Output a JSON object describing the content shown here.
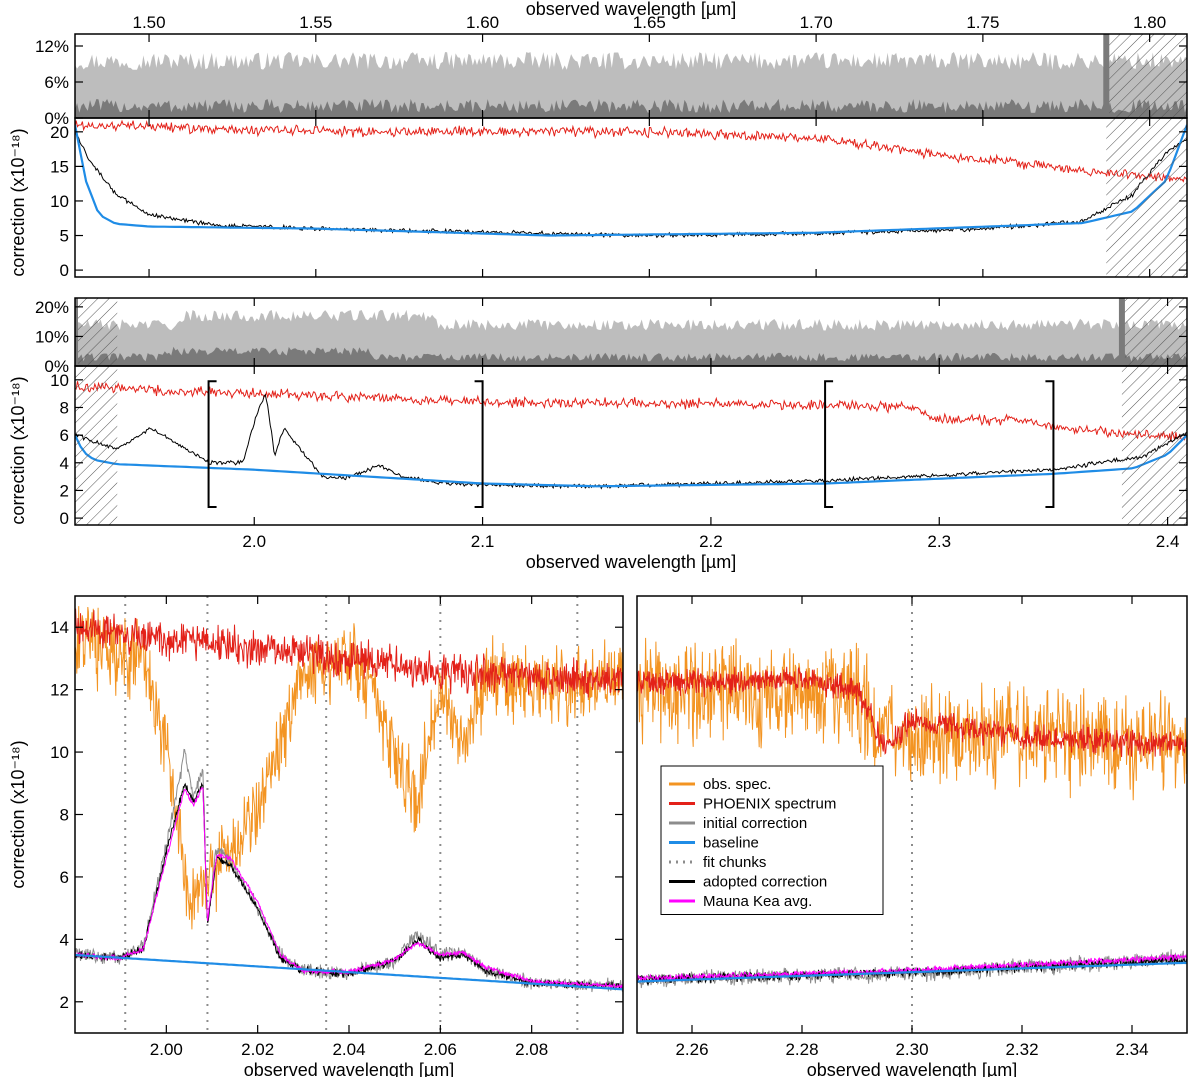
{
  "colors": {
    "obs": "#f39422",
    "phoenix": "#e32119",
    "initial": "#8c8c8c",
    "baseline": "#1f8ce6",
    "chunks": "#8c8c8c",
    "adopted": "#000000",
    "maunakea": "#ff00ff",
    "noise_light": "#bdbdbd",
    "noise_dark": "#7a7a7a",
    "frame": "#000000"
  },
  "chart_data": [
    {
      "id": "H-noise",
      "type": "area",
      "title": "",
      "xlabel": "observed wavelength [µm]",
      "x_ticks": [
        1.5,
        1.55,
        1.6,
        1.65,
        1.7,
        1.75,
        1.8
      ],
      "x_tick_labels": [
        "1.50",
        "1.55",
        "1.60",
        "1.65",
        "1.70",
        "1.75",
        "1.80"
      ],
      "xlim": [
        1.4778,
        1.8112
      ],
      "ylim": [
        0,
        0.14
      ],
      "y_ticks": [
        0,
        0.06,
        0.12
      ],
      "y_tick_labels": [
        "0%",
        "6%",
        "12%"
      ],
      "series": [
        {
          "name": "noise (total)",
          "level": 0.095,
          "jitter": 0.015
        },
        {
          "name": "noise (residual)",
          "level": 0.02,
          "jitter": 0.012
        }
      ],
      "masked_ranges": [
        [
          1.787,
          1.8112
        ]
      ]
    },
    {
      "id": "H-correction",
      "type": "line",
      "ylabel": "correction (x10⁻¹⁸)",
      "xlim": [
        1.4778,
        1.8112
      ],
      "ylim": [
        -1,
        22
      ],
      "y_ticks": [
        0,
        5,
        10,
        15,
        20
      ],
      "y_tick_labels": [
        "0",
        "5",
        "10",
        "15",
        "20"
      ],
      "series": [
        {
          "name": "PHOENIX spectrum",
          "color_key": "phoenix",
          "knots_x": [
            1.4778,
            1.55,
            1.65,
            1.7,
            1.74,
            1.78,
            1.8112
          ],
          "knots_y": [
            21.0,
            20.0,
            20.0,
            19.0,
            16.5,
            14.5,
            13.0
          ],
          "noise": 0.6
        },
        {
          "name": "adopted correction",
          "color_key": "adopted",
          "knots_x": [
            1.4778,
            1.482,
            1.49,
            1.5,
            1.52,
            1.55,
            1.6,
            1.65,
            1.7,
            1.75,
            1.78,
            1.795,
            1.805,
            1.8112
          ],
          "knots_y": [
            20.0,
            16.0,
            11.0,
            8.0,
            6.5,
            6.0,
            5.5,
            5.0,
            5.3,
            6.0,
            7.0,
            11.0,
            17.0,
            19.0
          ],
          "noise": 0.25
        },
        {
          "name": "baseline",
          "color_key": "baseline",
          "knots_x": [
            1.4778,
            1.481,
            1.485,
            1.49,
            1.5,
            1.55,
            1.62,
            1.7,
            1.78,
            1.795,
            1.805,
            1.8112
          ],
          "knots_y": [
            21.0,
            13.0,
            8.0,
            6.7,
            6.3,
            6.0,
            5.0,
            5.4,
            6.8,
            8.5,
            13.0,
            21.0
          ],
          "noise": 0
        }
      ],
      "masked_ranges": [
        [
          1.787,
          1.8112
        ]
      ]
    },
    {
      "id": "K-noise",
      "type": "area",
      "xlim": [
        1.9215,
        2.4085
      ],
      "ylim": [
        0,
        0.23
      ],
      "y_ticks": [
        0,
        0.1,
        0.2
      ],
      "y_tick_labels": [
        "0%",
        "10%",
        "20%"
      ],
      "series": [
        {
          "name": "noise (total)",
          "level": 0.14,
          "jitter": 0.02
        },
        {
          "name": "noise (residual)",
          "level": 0.03,
          "jitter": 0.015
        }
      ],
      "masked_ranges": [
        [
          1.9215,
          1.94
        ],
        [
          2.38,
          2.4085
        ]
      ]
    },
    {
      "id": "K-correction",
      "type": "line",
      "ylabel": "correction (x10⁻¹⁸)",
      "xlabel": "observed wavelength [µm]",
      "x_ticks": [
        2.0,
        2.1,
        2.2,
        2.3,
        2.4
      ],
      "x_tick_labels": [
        "2.0",
        "2.1",
        "2.2",
        "2.3",
        "2.4"
      ],
      "xlim": [
        1.9215,
        2.4085
      ],
      "ylim": [
        -0.5,
        11
      ],
      "y_ticks": [
        0,
        2,
        4,
        6,
        8,
        10
      ],
      "y_tick_labels": [
        "0",
        "2",
        "4",
        "6",
        "8",
        "10"
      ],
      "series": [
        {
          "name": "PHOENIX spectrum",
          "color_key": "phoenix",
          "knots_x": [
            1.9215,
            2.0,
            2.1,
            2.2,
            2.29,
            2.295,
            2.34,
            2.35,
            2.4085
          ],
          "knots_y": [
            9.5,
            9.0,
            8.4,
            8.3,
            8.0,
            7.2,
            7.0,
            6.6,
            5.8
          ],
          "noise": 0.3
        },
        {
          "name": "adopted correction",
          "color_key": "adopted",
          "knots_x": [
            1.9215,
            1.94,
            1.955,
            1.965,
            1.98,
            1.995,
            2.002,
            2.005,
            2.009,
            2.013,
            2.02,
            2.03,
            2.04,
            2.055,
            2.065,
            2.08,
            2.1,
            2.15,
            2.25,
            2.35,
            2.39,
            2.4085
          ],
          "knots_y": [
            6.0,
            5.0,
            6.5,
            5.5,
            4.0,
            4.0,
            8.0,
            9.0,
            4.5,
            6.5,
            5.0,
            3.0,
            2.9,
            3.8,
            3.0,
            2.6,
            2.4,
            2.3,
            2.7,
            3.5,
            4.5,
            6.2
          ],
          "noise": 0.12
        },
        {
          "name": "baseline",
          "color_key": "baseline",
          "knots_x": [
            1.9215,
            1.925,
            1.93,
            1.94,
            2.0,
            2.1,
            2.15,
            2.25,
            2.35,
            2.385,
            2.4,
            2.4085
          ],
          "knots_y": [
            6.0,
            4.8,
            4.2,
            3.9,
            3.5,
            2.5,
            2.3,
            2.5,
            3.2,
            3.6,
            4.6,
            6.0
          ],
          "noise": 0
        }
      ],
      "brackets": [
        [
          1.98,
          2.1
        ],
        [
          2.25,
          2.35
        ]
      ],
      "masked_ranges": [
        [
          1.9215,
          1.94
        ],
        [
          2.38,
          2.4085
        ]
      ]
    },
    {
      "id": "K-zoom-left",
      "type": "line",
      "ylabel": "correction (x10⁻¹⁸)",
      "xlabel": "observed wavelength [µm]",
      "xlim": [
        1.98,
        2.1
      ],
      "ylim": [
        1,
        15
      ],
      "x_ticks": [
        2.0,
        2.02,
        2.04,
        2.06,
        2.08
      ],
      "x_tick_labels": [
        "2.00",
        "2.02",
        "2.04",
        "2.06",
        "2.08"
      ],
      "y_ticks": [
        2,
        4,
        6,
        8,
        10,
        12,
        14
      ],
      "y_tick_labels": [
        "2",
        "4",
        "6",
        "8",
        "10",
        "12",
        "14"
      ],
      "fit_chunks": [
        1.991,
        2.009,
        2.035,
        2.06,
        2.09
      ],
      "series": [
        {
          "name": "obs. spec.",
          "color_key": "obs",
          "knots_x": [
            1.98,
            1.995,
            2.0,
            2.005,
            2.01,
            2.02,
            2.03,
            2.04,
            2.045,
            2.05,
            2.055,
            2.06,
            2.065,
            2.07,
            2.08,
            2.1
          ],
          "knots_y": [
            13.5,
            13.0,
            10.0,
            5.5,
            6.0,
            8.0,
            12.5,
            13.0,
            12.0,
            10.0,
            8.5,
            12.0,
            10.0,
            12.5,
            12.0,
            12.5
          ],
          "noise": 1.0
        },
        {
          "name": "PHOENIX spectrum",
          "color_key": "phoenix",
          "knots_x": [
            1.98,
            2.0,
            2.03,
            2.06,
            2.1
          ],
          "knots_y": [
            14.0,
            13.6,
            13.2,
            12.6,
            12.3
          ],
          "noise": 0.5
        },
        {
          "name": "initial correction",
          "color_key": "initial",
          "knots_x": [
            1.98,
            1.99,
            1.995,
            2.0,
            2.004,
            2.006,
            2.008,
            2.009,
            2.011,
            2.014,
            2.02,
            2.025,
            2.03,
            2.04,
            2.05,
            2.055,
            2.06,
            2.065,
            2.07,
            2.08,
            2.1
          ],
          "knots_y": [
            3.5,
            3.4,
            3.8,
            7.0,
            10.0,
            8.5,
            9.5,
            4.5,
            7.0,
            6.5,
            5.0,
            3.5,
            3.0,
            2.9,
            3.3,
            4.2,
            3.5,
            3.6,
            3.0,
            2.6,
            2.5
          ],
          "noise": 0.18
        },
        {
          "name": "adopted correction",
          "color_key": "adopted",
          "knots_x": [
            1.98,
            1.99,
            1.995,
            2.0,
            2.004,
            2.006,
            2.008,
            2.009,
            2.011,
            2.014,
            2.02,
            2.025,
            2.03,
            2.04,
            2.05,
            2.055,
            2.06,
            2.065,
            2.07,
            2.08,
            2.1
          ],
          "knots_y": [
            3.5,
            3.4,
            3.7,
            6.8,
            9.0,
            8.4,
            9.0,
            4.5,
            6.6,
            6.4,
            5.0,
            3.4,
            3.0,
            2.9,
            3.3,
            4.0,
            3.4,
            3.5,
            3.0,
            2.6,
            2.5
          ],
          "noise": 0.1
        },
        {
          "name": "Mauna Kea avg.",
          "color_key": "maunakea",
          "knots_x": [
            1.98,
            1.99,
            1.995,
            2.0,
            2.004,
            2.006,
            2.008,
            2.009,
            2.011,
            2.014,
            2.02,
            2.025,
            2.03,
            2.04,
            2.05,
            2.055,
            2.06,
            2.065,
            2.07,
            2.08,
            2.1
          ],
          "knots_y": [
            3.5,
            3.4,
            3.7,
            6.6,
            8.8,
            8.3,
            8.9,
            4.6,
            6.7,
            6.6,
            5.2,
            3.5,
            3.0,
            2.95,
            3.35,
            3.9,
            3.5,
            3.6,
            3.1,
            2.65,
            2.5
          ],
          "noise": 0.06
        },
        {
          "name": "baseline",
          "color_key": "baseline",
          "knots_x": [
            1.98,
            2.1
          ],
          "knots_y": [
            3.5,
            2.4
          ],
          "noise": 0
        }
      ]
    },
    {
      "id": "K-zoom-right",
      "type": "line",
      "xlabel": "observed wavelength [µm]",
      "xlim": [
        2.25,
        2.35
      ],
      "ylim": [
        1,
        15
      ],
      "x_ticks": [
        2.26,
        2.28,
        2.3,
        2.32,
        2.34
      ],
      "x_tick_labels": [
        "2.26",
        "2.28",
        "2.30",
        "2.32",
        "2.34"
      ],
      "fit_chunks": [
        2.3
      ],
      "series": [
        {
          "name": "obs. spec.",
          "color_key": "obs",
          "knots_x": [
            2.25,
            2.29,
            2.295,
            2.32,
            2.35
          ],
          "knots_y": [
            12.0,
            11.8,
            10.5,
            10.5,
            10.2
          ],
          "noise": 1.3
        },
        {
          "name": "PHOENIX spectrum",
          "color_key": "phoenix",
          "knots_x": [
            2.25,
            2.28,
            2.29,
            2.295,
            2.3,
            2.32,
            2.35
          ],
          "knots_y": [
            12.2,
            12.3,
            12.0,
            10.2,
            11.0,
            10.5,
            10.2
          ],
          "noise": 0.35
        },
        {
          "name": "initial correction",
          "color_key": "initial",
          "knots_x": [
            2.25,
            2.3,
            2.35
          ],
          "knots_y": [
            2.7,
            2.9,
            3.4
          ],
          "noise": 0.22
        },
        {
          "name": "adopted correction",
          "color_key": "adopted",
          "knots_x": [
            2.25,
            2.3,
            2.35
          ],
          "knots_y": [
            2.7,
            2.95,
            3.35
          ],
          "noise": 0.12
        },
        {
          "name": "Mauna Kea avg.",
          "color_key": "maunakea",
          "knots_x": [
            2.25,
            2.3,
            2.35
          ],
          "knots_y": [
            2.75,
            3.0,
            3.45
          ],
          "noise": 0.08
        },
        {
          "name": "baseline",
          "color_key": "baseline",
          "knots_x": [
            2.25,
            2.35
          ],
          "knots_y": [
            2.65,
            3.25
          ],
          "noise": 0
        }
      ]
    }
  ],
  "top_axis_label": "observed wavelength [µm]",
  "legend": {
    "placement": "bottom-left of right zoom panel",
    "items": [
      {
        "label": "obs. spec.",
        "color_key": "obs",
        "style": "solid"
      },
      {
        "label": "PHOENIX spectrum",
        "color_key": "phoenix",
        "style": "solid"
      },
      {
        "label": "initial correction",
        "color_key": "initial",
        "style": "solid"
      },
      {
        "label": "baseline",
        "color_key": "baseline",
        "style": "solid"
      },
      {
        "label": "fit chunks",
        "color_key": "chunks",
        "style": "dotted"
      },
      {
        "label": "adopted correction",
        "color_key": "adopted",
        "style": "solid"
      },
      {
        "label": "Mauna Kea avg.",
        "color_key": "maunakea",
        "style": "solid"
      }
    ]
  }
}
